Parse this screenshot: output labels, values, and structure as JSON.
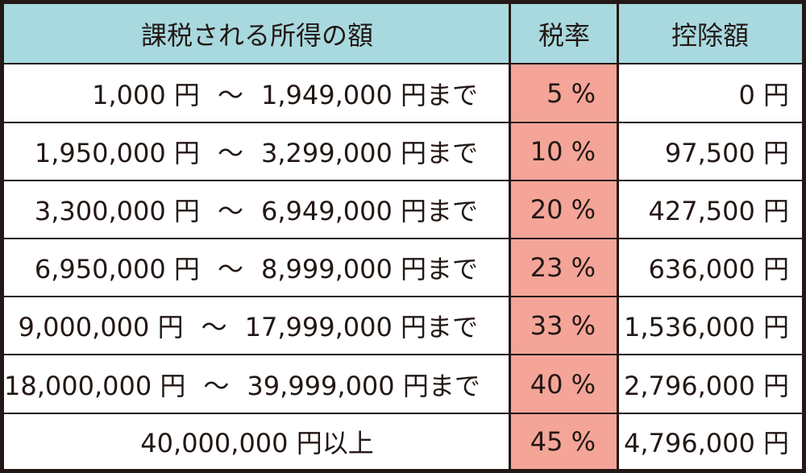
{
  "header": {
    "col1": "課税される所得の額",
    "col2": "税率",
    "col3": "控除額"
  },
  "rows": [
    {
      "from": "1,000 円",
      "sep": "～",
      "to": "1,949,000 円まで",
      "rate": "5 %",
      "deduction": "0 円"
    },
    {
      "from": "1,950,000 円",
      "sep": "～",
      "to": "3,299,000 円まで",
      "rate": "10 %",
      "deduction": "97,500 円"
    },
    {
      "from": "3,300,000 円",
      "sep": "～",
      "to": "6,949,000 円まで",
      "rate": "20 %",
      "deduction": "427,500 円"
    },
    {
      "from": "6,950,000 円",
      "sep": "～",
      "to": "8,999,000 円まで",
      "rate": "23 %",
      "deduction": "636,000 円"
    },
    {
      "from": "9,000,000 円",
      "sep": "～",
      "to": "17,999,000 円まで",
      "rate": "33 %",
      "deduction": "1,536,000 円"
    },
    {
      "from": "18,000,000 円",
      "sep": "～",
      "to": "39,999,000 円まで",
      "rate": "40 %",
      "deduction": "2,796,000 円"
    }
  ],
  "last_row": {
    "range": "40,000,000 円以上",
    "rate": "45 %",
    "deduction": "4,796,000 円"
  },
  "colors": {
    "header_bg": "#a8d9df",
    "rate_bg": "#f4a598",
    "border": "#231815"
  }
}
